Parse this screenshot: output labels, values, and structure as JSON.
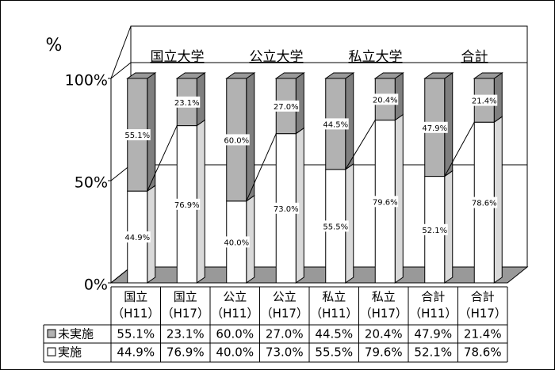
{
  "chart_data": {
    "type": "bar",
    "stacked": true,
    "y_label": "%",
    "group_labels": [
      "国立大学",
      "公立大学",
      "私立大学",
      "合計"
    ],
    "categories": [
      [
        "国立",
        "（H11）"
      ],
      [
        "国立",
        "（H17）"
      ],
      [
        "公立",
        "（H11）"
      ],
      [
        "公立",
        "（H17）"
      ],
      [
        "私立",
        "（H11）"
      ],
      [
        "私立",
        "（H17）"
      ],
      [
        "合計",
        "（H11）"
      ],
      [
        "合計",
        "（H17）"
      ]
    ],
    "series": [
      {
        "name": "実施",
        "color": "#ffffff",
        "values": [
          44.9,
          76.9,
          40.0,
          73.0,
          55.5,
          79.6,
          52.1,
          78.6
        ],
        "value_labels": [
          "44.9%",
          "76.9%",
          "40.0%",
          "73.0%",
          "55.5%",
          "79.6%",
          "52.1%",
          "78.6%"
        ]
      },
      {
        "name": "未実施",
        "color": "#b2b2b2",
        "values": [
          55.1,
          23.1,
          60.0,
          27.0,
          44.5,
          20.4,
          47.9,
          21.4
        ],
        "value_labels": [
          "55.1%",
          "23.1%",
          "60.0%",
          "27.0%",
          "44.5%",
          "20.4%",
          "47.9%",
          "21.4%"
        ]
      }
    ],
    "ylim": [
      0,
      100
    ],
    "yticks": [
      {
        "value": 0,
        "label": "0%"
      },
      {
        "value": 50,
        "label": "50%"
      },
      {
        "value": 100,
        "label": "100%"
      }
    ],
    "grid": true
  }
}
